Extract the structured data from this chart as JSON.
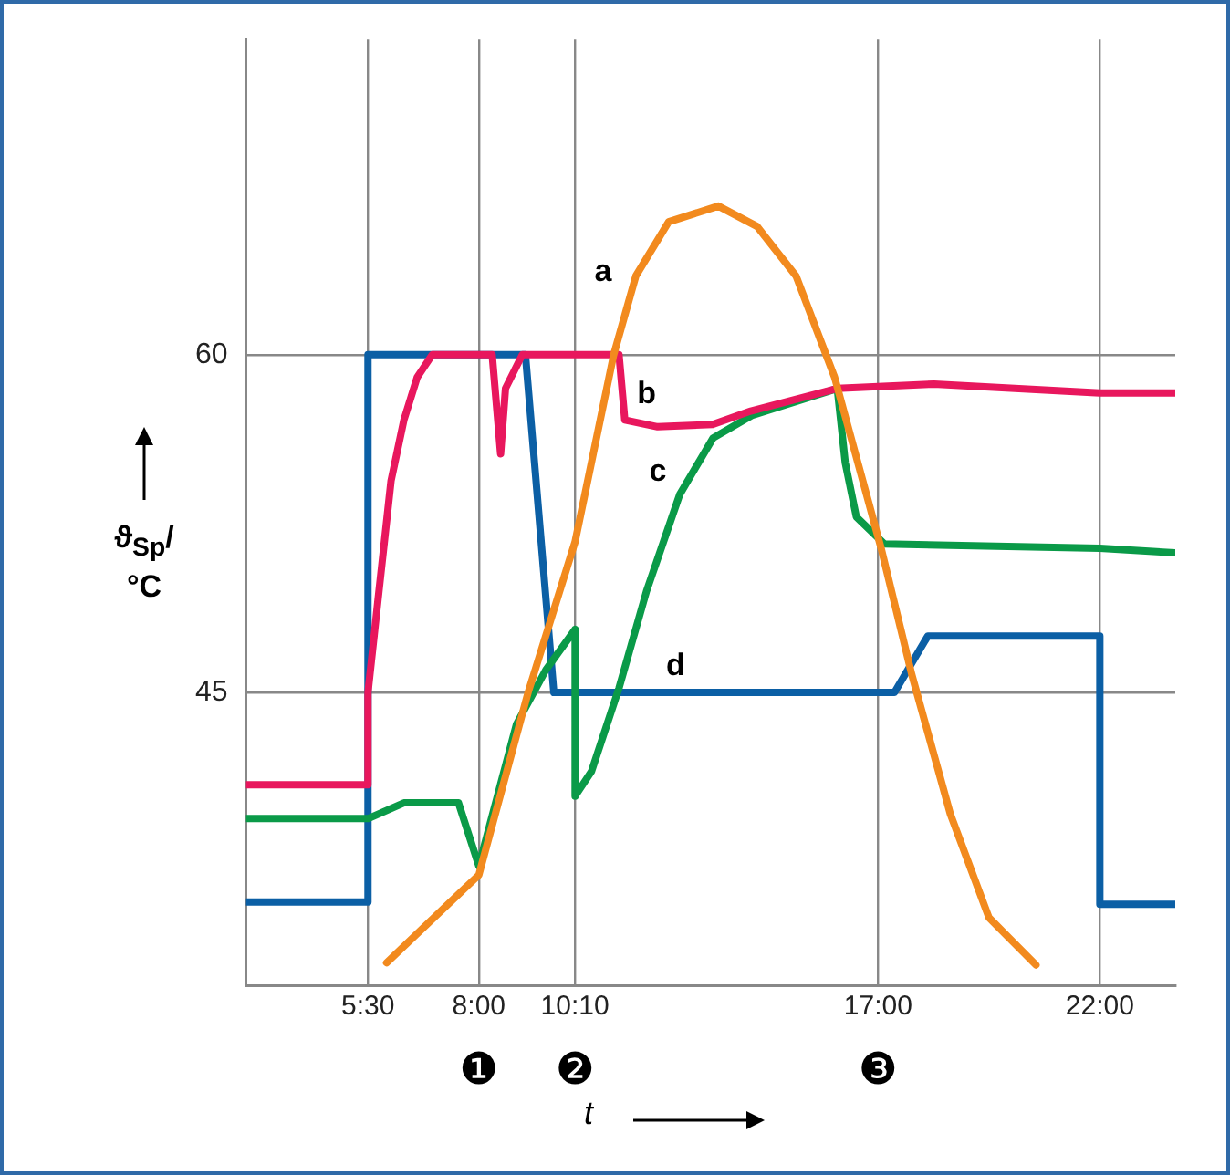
{
  "chart_data": {
    "type": "line",
    "xlabel": "t",
    "ylabel": "ϑ$_{Sp}$/°C",
    "xlim": [
      2.75,
      23.7
    ],
    "ylim": [
      32,
      74
    ],
    "xticks": [
      {
        "value": 5.5,
        "label": "5:30"
      },
      {
        "value": 8,
        "label": "8:00"
      },
      {
        "value": 10.1667,
        "label": "10:10"
      },
      {
        "value": 17,
        "label": "17:00"
      },
      {
        "value": 22,
        "label": "22:00"
      }
    ],
    "yticks": [
      45,
      60
    ],
    "grid": true,
    "legend": false,
    "marker": "none",
    "line_style": "solid",
    "annotations": [
      "❶",
      "❷",
      "❸"
    ],
    "series": [
      {
        "name": "a",
        "color": "#f28a1e",
        "x": [
          5.92,
          8.0,
          9.11,
          10.17,
          11.04,
          11.54,
          12.28,
          13.4,
          14.27,
          15.15,
          16.02,
          17.07,
          17.76,
          18.63,
          19.5,
          20.56
        ],
        "values": [
          33.0,
          36.9,
          45.0,
          51.7,
          60.0,
          63.5,
          65.9,
          66.6,
          65.7,
          63.5,
          59.0,
          51.4,
          45.8,
          39.6,
          35.0,
          32.9
        ]
      },
      {
        "name": "b",
        "color": "#e8175d",
        "x": [
          2.75,
          5.5,
          5.5,
          5.72,
          6.02,
          6.31,
          6.61,
          6.95,
          8.3,
          8.49,
          8.6,
          8.98,
          11.16,
          11.29,
          12.03,
          13.27,
          14.13,
          16.08,
          18.26,
          22.0,
          23.7
        ],
        "values": [
          40.9,
          40.9,
          45.0,
          49.0,
          54.4,
          57.1,
          59.0,
          60,
          60,
          55.6,
          58.5,
          60,
          60,
          57.1,
          56.8,
          56.9,
          57.5,
          58.5,
          58.7,
          58.3,
          58.3
        ]
      },
      {
        "name": "c",
        "color": "#0a9a48",
        "x": [
          2.75,
          5.5,
          6.31,
          7.54,
          8.0,
          8.85,
          9.51,
          10.17,
          10.17,
          10.54,
          11.16,
          11.78,
          12.53,
          13.28,
          14.15,
          16.08,
          16.26,
          16.51,
          17.14,
          22.0,
          23.7
        ],
        "values": [
          39.4,
          39.4,
          40.1,
          40.1,
          37.3,
          43.6,
          46.0,
          47.8,
          40.4,
          41.5,
          45.2,
          49.5,
          53.8,
          56.3,
          57.3,
          58.5,
          55.2,
          52.8,
          51.6,
          51.4,
          51.2
        ]
      },
      {
        "name": "d",
        "color": "#0b5fa5",
        "x": [
          2.75,
          5.5,
          5.5,
          9.05,
          9.69,
          17.37,
          18.12,
          22.0,
          22.0,
          23.7
        ],
        "values": [
          35.7,
          35.7,
          60,
          60,
          45,
          45,
          47.5,
          47.5,
          35.6,
          35.6
        ]
      }
    ]
  }
}
